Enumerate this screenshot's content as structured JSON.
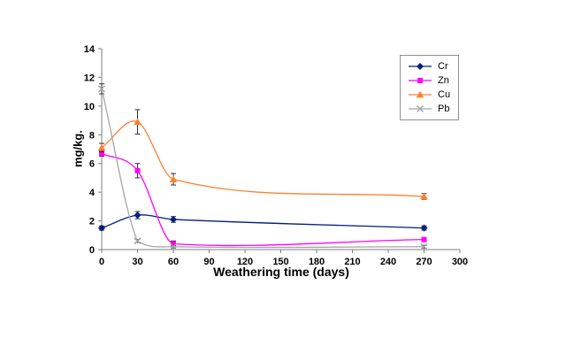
{
  "chart_data": {
    "type": "line",
    "title": "",
    "xlabel": "Weathering time (days)",
    "ylabel": "mg/kg.",
    "xlim": [
      0,
      300
    ],
    "ylim": [
      0,
      14
    ],
    "xticks": [
      0,
      30,
      60,
      90,
      120,
      150,
      180,
      210,
      240,
      270,
      300
    ],
    "yticks": [
      0,
      2,
      4,
      6,
      8,
      10,
      12,
      14
    ],
    "x": [
      0,
      30,
      60,
      270
    ],
    "grid": false,
    "legend_position": "top-right",
    "error_bar_color": "#303030",
    "axis_color": "#7f7f7f",
    "series": [
      {
        "name": "Cr",
        "color": "#002080",
        "marker": "diamond",
        "values": [
          1.5,
          2.4,
          2.1,
          1.5
        ],
        "errors": [
          0.15,
          0.25,
          0.2,
          0.15
        ]
      },
      {
        "name": "Zn",
        "color": "#ff00ff",
        "marker": "square",
        "values": [
          6.7,
          5.5,
          0.4,
          0.7
        ],
        "errors": [
          0.2,
          0.5,
          0.2,
          0.1
        ]
      },
      {
        "name": "Cu",
        "color": "#ff8030",
        "marker": "triangle",
        "values": [
          7.1,
          8.9,
          4.9,
          3.7
        ],
        "errors": [
          0.3,
          0.85,
          0.4,
          0.2
        ]
      },
      {
        "name": "Pb",
        "color": "#a6a6a6",
        "marker": "x",
        "values": [
          11.2,
          0.6,
          0.2,
          0.2
        ],
        "errors": [
          0.35,
          0.1,
          0.1,
          0.1
        ]
      }
    ]
  }
}
